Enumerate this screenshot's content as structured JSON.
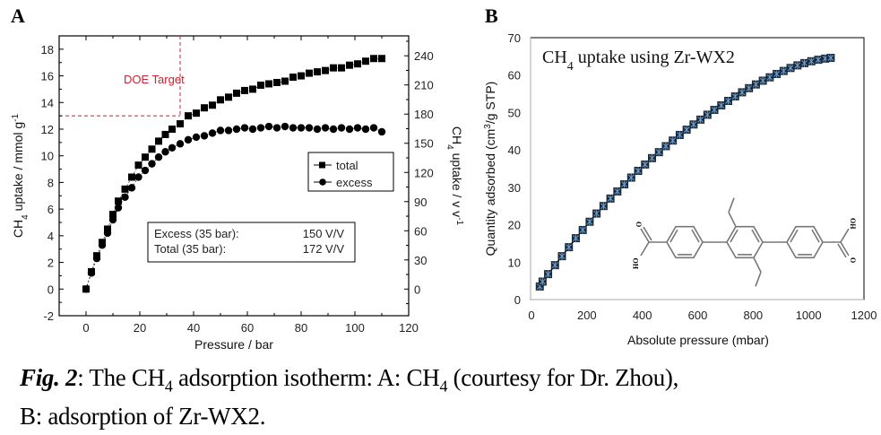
{
  "figure": {
    "caption_label": "Fig. 2",
    "caption_line1_a": ": The CH",
    "caption_sub1": "4",
    "caption_line1_b": " adsorption isotherm: A: CH",
    "caption_sub2": "4",
    "caption_line1_c": " (courtesy for Dr. Zhou),",
    "caption_line2": "B: adsorption of Zr-WX2."
  },
  "chart_data": [
    {
      "panel": "A",
      "type": "scatter",
      "xlabel": "Pressure / bar",
      "ylabel": "CH4 uptake / mmol g-1",
      "ylabel_parts": [
        "CH",
        "4",
        " uptake / mmol g",
        "-1"
      ],
      "y2label": "CH4 uptake / v v-1",
      "y2label_parts": [
        "CH",
        "4",
        " uptake / v v",
        "-1"
      ],
      "xlim": [
        -10,
        120
      ],
      "ylim": [
        -2,
        19
      ],
      "y2lim": [
        -27.4,
        260.5
      ],
      "xticks": [
        0,
        20,
        40,
        60,
        80,
        100,
        120
      ],
      "yticks": [
        -2,
        0,
        2,
        4,
        6,
        8,
        10,
        12,
        14,
        16,
        18
      ],
      "y2ticks": [
        0,
        30,
        60,
        90,
        120,
        150,
        180,
        210,
        240
      ],
      "legend": {
        "position": "center-right",
        "entries": [
          "total",
          "excess"
        ]
      },
      "annotation_target": {
        "label": "DOE Target",
        "x_max": 35,
        "y_min": 13,
        "color": "#cc2233"
      },
      "info_box": {
        "rows": [
          {
            "label": "Excess (35 bar):",
            "value": "150 V/V"
          },
          {
            "label": "Total (35 bar):",
            "value": "172 V/V"
          }
        ]
      },
      "series": [
        {
          "name": "total",
          "marker": "square",
          "x": [
            0,
            2,
            4,
            6,
            8,
            10,
            12,
            14.5,
            17,
            19.5,
            22,
            24.5,
            27,
            29.5,
            32,
            35,
            38,
            41,
            44,
            47,
            50,
            53,
            56,
            59,
            62,
            65,
            68,
            71,
            74,
            77,
            80,
            83,
            86,
            89,
            92,
            95,
            98,
            101,
            104,
            107,
            110
          ],
          "y": [
            0,
            1.3,
            2.5,
            3.5,
            4.5,
            5.6,
            6.6,
            7.5,
            8.4,
            9.3,
            9.9,
            10.5,
            11.1,
            11.6,
            12.0,
            12.4,
            13.0,
            13.2,
            13.6,
            13.8,
            14.2,
            14.4,
            14.7,
            14.9,
            15.0,
            15.3,
            15.4,
            15.5,
            15.6,
            15.9,
            16.0,
            16.2,
            16.3,
            16.4,
            16.6,
            16.6,
            16.8,
            16.9,
            17.1,
            17.3,
            17.3
          ]
        },
        {
          "name": "excess",
          "marker": "circle",
          "x": [
            0,
            2,
            4,
            6,
            8,
            10,
            12,
            14.5,
            17,
            19.5,
            22,
            24.5,
            27,
            29.5,
            32,
            35,
            38,
            41,
            44,
            47,
            50,
            53,
            56,
            59,
            62,
            65,
            68,
            71,
            74,
            77,
            80,
            83,
            86,
            89,
            92,
            95,
            98,
            101,
            104,
            107,
            110
          ],
          "y": [
            0,
            1.2,
            2.3,
            3.3,
            4.2,
            5.2,
            6.1,
            6.9,
            7.6,
            8.4,
            8.9,
            9.4,
            9.9,
            10.3,
            10.6,
            10.9,
            11.2,
            11.4,
            11.5,
            11.7,
            11.9,
            11.9,
            12.0,
            12.1,
            12.0,
            12.1,
            12.2,
            12.1,
            12.2,
            12.1,
            12.1,
            12.1,
            12.0,
            12.1,
            12.0,
            12.1,
            12.0,
            12.1,
            12.0,
            12.1,
            11.8
          ]
        }
      ]
    },
    {
      "panel": "B",
      "type": "line",
      "title": "CH4 uptake using Zr-WX2",
      "title_parts": [
        "CH",
        "4",
        " uptake using Zr-WX2"
      ],
      "xlabel": "Absolute pressure (mbar)",
      "ylabel": "Quantity adsorbed (cm3/g STP)",
      "ylabel_parts": [
        "Quantity adsorbed (cm",
        "3",
        "/g STP)"
      ],
      "xlim": [
        0,
        1200
      ],
      "ylim": [
        0,
        70
      ],
      "xticks": [
        0,
        200,
        400,
        600,
        800,
        1000,
        1200
      ],
      "yticks": [
        0,
        10,
        20,
        30,
        40,
        50,
        60,
        70
      ],
      "marker_fill": "#1a2a3a",
      "marker_star": "#6fa0d0",
      "series": [
        {
          "name": "Zr-WX2",
          "x": [
            30,
            40,
            60,
            85,
            110,
            135,
            160,
            185,
            210,
            235,
            260,
            285,
            310,
            335,
            360,
            385,
            410,
            435,
            460,
            485,
            510,
            535,
            560,
            585,
            610,
            635,
            660,
            685,
            710,
            735,
            760,
            785,
            810,
            835,
            860,
            885,
            910,
            935,
            960,
            985,
            1010,
            1035,
            1060,
            1080
          ],
          "y": [
            3.5,
            4.8,
            6.8,
            9.2,
            11.6,
            14.0,
            16.4,
            18.6,
            20.8,
            23.0,
            25.0,
            27.0,
            28.9,
            30.8,
            32.6,
            34.4,
            36.1,
            37.8,
            39.4,
            41.0,
            42.5,
            44.0,
            45.4,
            46.8,
            48.1,
            49.4,
            50.7,
            51.9,
            53.1,
            54.3,
            55.4,
            56.5,
            57.5,
            58.5,
            59.4,
            60.3,
            61.1,
            61.9,
            62.6,
            63.2,
            63.7,
            64.1,
            64.4,
            64.6
          ]
        }
      ],
      "inset": {
        "type": "chemical-structure",
        "labels": {
          "oh_left": "HO",
          "o_left": "O",
          "oh_right": "OH",
          "o_right": "O"
        }
      }
    }
  ]
}
